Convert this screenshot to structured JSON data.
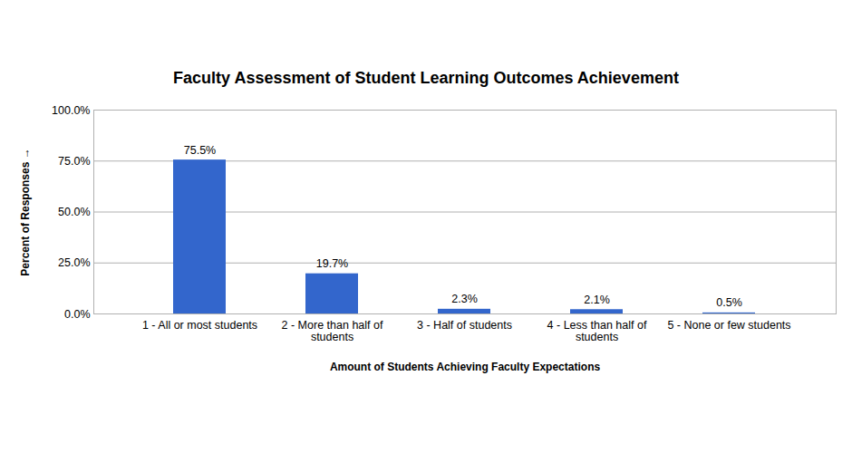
{
  "chart_data": {
    "type": "bar",
    "title": "Faculty Assessment of Student Learning Outcomes Achievement",
    "x_label": "Amount of Students Achieving Faculty Expectations",
    "y_label": "Percent of Responses",
    "categories": [
      "1 - All or most students",
      "2 - More than half of students",
      "3 - Half of students",
      "4 - Less than half of students",
      "5 - None or few students"
    ],
    "values": [
      75.5,
      19.7,
      2.3,
      2.1,
      0.5
    ],
    "value_labels": [
      "75.5%",
      "19.7%",
      "2.3%",
      "2.1%",
      "0.5%"
    ],
    "data_labels": true,
    "color": "#3366cc",
    "ylim": [
      0,
      100
    ],
    "yticks": [
      {
        "value": 0,
        "label": "0.0%"
      },
      {
        "value": 25,
        "label": "25.0%"
      },
      {
        "value": 50,
        "label": "50.0%"
      },
      {
        "value": 75,
        "label": "75.0%"
      },
      {
        "value": 100,
        "label": "100.0%"
      }
    ],
    "grid": true
  }
}
